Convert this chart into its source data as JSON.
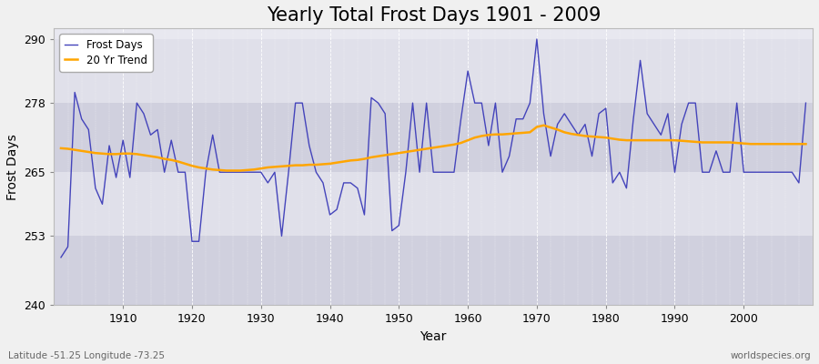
{
  "title": "Yearly Total Frost Days 1901 - 2009",
  "xlabel": "Year",
  "ylabel": "Frost Days",
  "lat_lon_label": "Latitude -51.25 Longitude -73.25",
  "watermark": "worldspecies.org",
  "years": [
    1901,
    1902,
    1903,
    1904,
    1905,
    1906,
    1907,
    1908,
    1909,
    1910,
    1911,
    1912,
    1913,
    1914,
    1915,
    1916,
    1917,
    1918,
    1919,
    1920,
    1921,
    1922,
    1923,
    1924,
    1925,
    1926,
    1927,
    1928,
    1929,
    1930,
    1931,
    1932,
    1933,
    1934,
    1935,
    1936,
    1937,
    1938,
    1939,
    1940,
    1941,
    1942,
    1943,
    1944,
    1945,
    1946,
    1947,
    1948,
    1949,
    1950,
    1951,
    1952,
    1953,
    1954,
    1955,
    1956,
    1957,
    1958,
    1959,
    1960,
    1961,
    1962,
    1963,
    1964,
    1965,
    1966,
    1967,
    1968,
    1969,
    1970,
    1971,
    1972,
    1973,
    1974,
    1975,
    1976,
    1977,
    1978,
    1979,
    1980,
    1981,
    1982,
    1983,
    1984,
    1985,
    1986,
    1987,
    1988,
    1989,
    1990,
    1991,
    1992,
    1993,
    1994,
    1995,
    1996,
    1997,
    1998,
    1999,
    2000,
    2001,
    2002,
    2003,
    2004,
    2005,
    2006,
    2007,
    2008,
    2009
  ],
  "frost_days": [
    249,
    251,
    280,
    275,
    273,
    262,
    259,
    270,
    264,
    271,
    264,
    278,
    276,
    272,
    273,
    265,
    271,
    265,
    265,
    252,
    252,
    265,
    272,
    265,
    265,
    265,
    265,
    265,
    265,
    265,
    263,
    265,
    253,
    265,
    278,
    278,
    270,
    265,
    263,
    257,
    258,
    263,
    263,
    262,
    257,
    279,
    278,
    276,
    254,
    255,
    265,
    278,
    265,
    278,
    265,
    265,
    265,
    265,
    275,
    284,
    278,
    278,
    270,
    278,
    265,
    268,
    275,
    275,
    278,
    290,
    276,
    268,
    274,
    276,
    274,
    272,
    274,
    268,
    276,
    277,
    263,
    265,
    262,
    275,
    286,
    276,
    274,
    272,
    276,
    265,
    274,
    278,
    278,
    265,
    265,
    269,
    265,
    265,
    278,
    265,
    265,
    265,
    265,
    265,
    265,
    265,
    265,
    263,
    278
  ],
  "trend_values": [
    269.5,
    269.4,
    269.2,
    269.0,
    268.8,
    268.6,
    268.5,
    268.4,
    268.4,
    268.5,
    268.5,
    268.4,
    268.2,
    268.0,
    267.8,
    267.5,
    267.3,
    267.0,
    266.6,
    266.2,
    265.9,
    265.7,
    265.5,
    265.4,
    265.3,
    265.3,
    265.3,
    265.4,
    265.5,
    265.7,
    265.9,
    266.0,
    266.1,
    266.2,
    266.3,
    266.3,
    266.4,
    266.4,
    266.5,
    266.6,
    266.8,
    267.0,
    267.2,
    267.3,
    267.5,
    267.8,
    268.0,
    268.2,
    268.4,
    268.6,
    268.8,
    269.0,
    269.2,
    269.4,
    269.6,
    269.8,
    270.0,
    270.2,
    270.5,
    271.0,
    271.5,
    271.8,
    272.0,
    272.1,
    272.1,
    272.2,
    272.3,
    272.4,
    272.5,
    273.5,
    273.8,
    273.4,
    273.0,
    272.5,
    272.2,
    272.0,
    271.8,
    271.7,
    271.6,
    271.5,
    271.3,
    271.1,
    271.0,
    271.0,
    271.0,
    271.0,
    271.0,
    271.0,
    271.0,
    271.0,
    270.9,
    270.8,
    270.7,
    270.6,
    270.6,
    270.6,
    270.6,
    270.6,
    270.5,
    270.4,
    270.3,
    270.3,
    270.3,
    270.3,
    270.3,
    270.3,
    270.3,
    270.3,
    270.3
  ],
  "line_color": "#4444bb",
  "trend_color": "#FFA500",
  "fig_bg_color": "#f0f0f0",
  "plot_bg_color": "#e8e8f0",
  "band_color_light": "#e0e0ea",
  "band_color_dark": "#d0d0de",
  "ylim": [
    240,
    292
  ],
  "yticks": [
    240,
    253,
    265,
    278,
    290
  ],
  "xlim": [
    1900,
    2010
  ],
  "xticks": [
    1910,
    1920,
    1930,
    1940,
    1950,
    1960,
    1970,
    1980,
    1990,
    2000
  ],
  "title_fontsize": 15,
  "axis_label_fontsize": 10,
  "tick_fontsize": 9,
  "legend_fontsize": 8.5
}
